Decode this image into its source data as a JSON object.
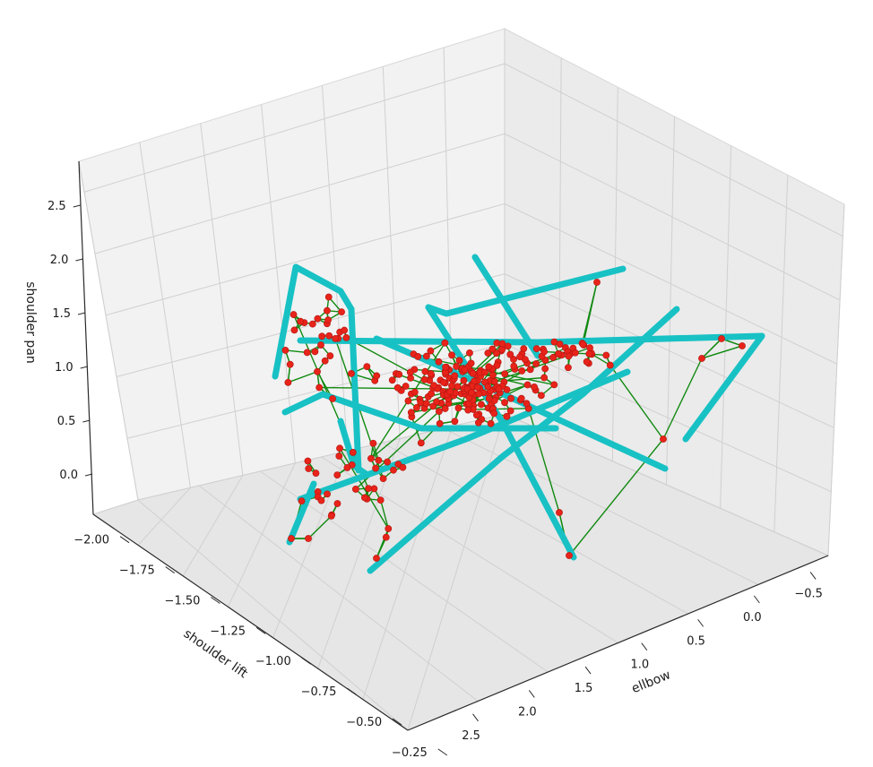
{
  "chart_data": {
    "type": "scatter",
    "projection": "3d",
    "title": "",
    "axes": {
      "x": {
        "label": "shoulder lift",
        "ticks": [
          "−2.00",
          "−1.75",
          "−1.50",
          "−1.25",
          "−1.00",
          "−0.75",
          "−0.50",
          "−0.25"
        ],
        "range": [
          -2.0,
          -0.25
        ]
      },
      "y": {
        "label": "ellbow",
        "ticks": [
          "2.5",
          "2.0",
          "1.5",
          "1.0",
          "0.5",
          "0.0",
          "−0.5"
        ],
        "range": [
          2.5,
          -0.5
        ]
      },
      "z": {
        "label": "shoulder pan",
        "ticks": [
          "0.0",
          "0.5",
          "1.0",
          "1.5",
          "2.0",
          "2.5"
        ],
        "range": [
          0.0,
          2.5
        ]
      }
    },
    "grid": true,
    "series": [
      {
        "kind": "graph-nodes-and-edges",
        "node_color": "#e8231a",
        "edge_color": "#118a11",
        "node_count": 280
      },
      {
        "kind": "trajectory-path",
        "color": "#18c1c4"
      }
    ],
    "colors": {
      "nodes": "#e8231a",
      "edges": "#118a11",
      "path": "#18c1c4",
      "grid": "#d4d4d4",
      "pane": "#f2f2f2"
    }
  }
}
